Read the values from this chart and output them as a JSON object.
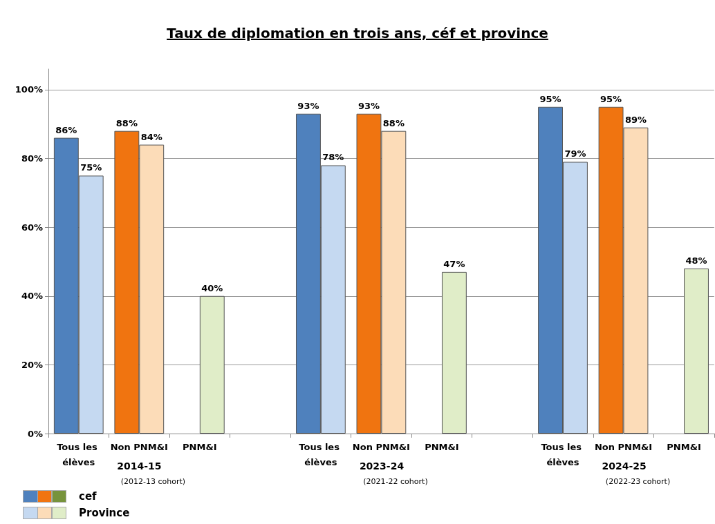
{
  "chart_data": {
    "type": "bar",
    "title": "Taux de diplomation en trois ans, céf et province",
    "categories": [
      "Tous les élèves",
      "Non PNM&I",
      "PNM&I",
      null,
      "Tous les élèves",
      "Non PNM&I",
      "PNM&I",
      null,
      "Tous les élèves",
      "Non PNM&I",
      "PNM&I"
    ],
    "series": [
      {
        "name": "cef",
        "color": "#4f81bd",
        "colors": [
          "#4f81bd",
          "#f07410",
          "#77933c",
          null,
          "#4f81bd",
          "#f07410",
          null,
          null,
          "#4f81bd",
          "#f07410",
          null
        ],
        "values": [
          86,
          88,
          null,
          null,
          93,
          93,
          null,
          null,
          95,
          95,
          null
        ],
        "value_labels": [
          "86%",
          "88%",
          null,
          null,
          "93%",
          "93%",
          null,
          null,
          "95%",
          "95%",
          null
        ]
      },
      {
        "name": "Province",
        "color": "#c5d9f1",
        "colors": [
          "#c5d9f1",
          "#fcdcb8",
          "#e0edc8",
          null,
          "#c5d9f1",
          "#fcdcb8",
          "#e0edc8",
          null,
          "#c5d9f1",
          "#fcdcb8",
          "#e0edc8"
        ],
        "values": [
          75,
          84,
          40,
          null,
          78,
          88,
          47,
          null,
          79,
          89,
          48
        ],
        "value_labels": [
          "75%",
          "84%",
          "40%",
          null,
          "78%",
          "88%",
          "47%",
          null,
          "79%",
          "89%",
          "48%"
        ]
      }
    ],
    "annotations": [
      "2014-15",
      "(2012-13 cohort)",
      "2023-24",
      "(2021-22 cohort)",
      "2024-25",
      "(2022-23 cohort)"
    ],
    "ylim": [
      0,
      106
    ],
    "yticks": [
      {
        "value": 0,
        "label": "0%"
      },
      {
        "value": 20,
        "label": "20%"
      },
      {
        "value": 40,
        "label": "40%"
      },
      {
        "value": 60,
        "label": "60%"
      },
      {
        "value": 80,
        "label": "80%"
      },
      {
        "value": 100,
        "label": "100%"
      }
    ],
    "grid": "y",
    "legend": "bottom left"
  }
}
